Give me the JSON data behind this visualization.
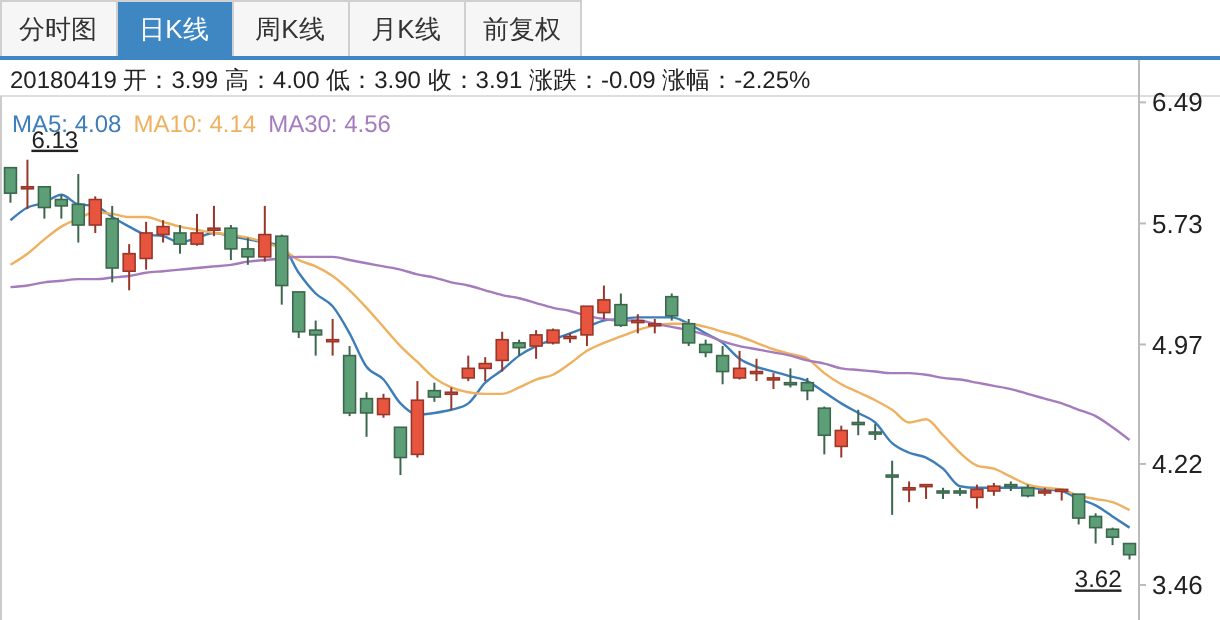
{
  "chart_data": {
    "type": "candlestick",
    "subtitle": "20180419 开：3.99 高：4.00 低：3.90 收：3.91 涨跌：-0.09 涨幅：-2.25%",
    "annotations": [
      "分时图",
      "日K线",
      "周K线",
      "月K线",
      "前复权",
      "6.13",
      "3.62"
    ],
    "categories": [
      null,
      null,
      null,
      null,
      null,
      null,
      null,
      null,
      null,
      null,
      null,
      null,
      null,
      null,
      null,
      null,
      null,
      null,
      null,
      null,
      null,
      null,
      null,
      null,
      null,
      null,
      null,
      null,
      null,
      null,
      null,
      null,
      null,
      null,
      null,
      null,
      null,
      null,
      null,
      null,
      null,
      null,
      null,
      null,
      null,
      null,
      null,
      null,
      null,
      null,
      null,
      null,
      null,
      null,
      null,
      null,
      null,
      null,
      null,
      null,
      null,
      null,
      null,
      null,
      null,
      null,
      null
    ],
    "ohlc": [
      [
        6.08,
        6.08,
        5.86,
        5.92
      ],
      [
        5.95,
        6.13,
        5.82,
        5.96
      ],
      [
        5.96,
        5.96,
        5.76,
        5.83
      ],
      [
        5.88,
        5.91,
        5.76,
        5.84
      ],
      [
        5.85,
        6.04,
        5.61,
        5.72
      ],
      [
        5.72,
        5.9,
        5.67,
        5.88
      ],
      [
        5.76,
        5.84,
        5.36,
        5.45
      ],
      [
        5.43,
        5.6,
        5.31,
        5.54
      ],
      [
        5.51,
        5.74,
        5.44,
        5.67
      ],
      [
        5.66,
        5.75,
        5.61,
        5.71
      ],
      [
        5.67,
        5.72,
        5.54,
        5.6
      ],
      [
        5.6,
        5.79,
        5.59,
        5.67
      ],
      [
        5.69,
        5.84,
        5.65,
        5.7
      ],
      [
        5.7,
        5.72,
        5.5,
        5.57
      ],
      [
        5.57,
        5.64,
        5.47,
        5.52
      ],
      [
        5.52,
        5.84,
        5.49,
        5.66
      ],
      [
        5.65,
        5.66,
        5.22,
        5.34
      ],
      [
        5.3,
        5.3,
        5.01,
        5.05
      ],
      [
        5.06,
        5.12,
        4.9,
        5.03
      ],
      [
        4.99,
        5.13,
        4.9,
        5.0
      ],
      [
        4.9,
        4.96,
        4.52,
        4.54
      ],
      [
        4.63,
        4.67,
        4.39,
        4.54
      ],
      [
        4.53,
        4.66,
        4.51,
        4.63
      ],
      [
        4.45,
        4.45,
        4.15,
        4.26
      ],
      [
        4.28,
        4.74,
        4.26,
        4.62
      ],
      [
        4.68,
        4.73,
        4.61,
        4.64
      ],
      [
        4.66,
        4.7,
        4.56,
        4.67
      ],
      [
        4.76,
        4.9,
        4.74,
        4.82
      ],
      [
        4.82,
        4.89,
        4.74,
        4.85
      ],
      [
        4.87,
        5.05,
        4.8,
        5.0
      ],
      [
        4.98,
        5.0,
        4.9,
        4.95
      ],
      [
        4.96,
        5.06,
        4.88,
        5.03
      ],
      [
        4.98,
        5.07,
        4.97,
        5.06
      ],
      [
        5.01,
        5.04,
        4.98,
        5.02
      ],
      [
        5.03,
        5.21,
        4.96,
        5.21
      ],
      [
        5.17,
        5.34,
        5.13,
        5.25
      ],
      [
        5.22,
        5.29,
        5.08,
        5.09
      ],
      [
        5.11,
        5.16,
        5.04,
        5.12
      ],
      [
        5.09,
        5.13,
        5.04,
        5.1
      ],
      [
        5.27,
        5.29,
        5.12,
        5.15
      ],
      [
        5.1,
        5.13,
        4.96,
        4.98
      ],
      [
        4.97,
        5.0,
        4.89,
        4.92
      ],
      [
        4.9,
        4.96,
        4.72,
        4.8
      ],
      [
        4.76,
        4.93,
        4.75,
        4.82
      ],
      [
        4.79,
        4.88,
        4.74,
        4.8
      ],
      [
        4.75,
        4.79,
        4.69,
        4.76
      ],
      [
        4.73,
        4.82,
        4.7,
        4.72
      ],
      [
        4.73,
        4.76,
        4.62,
        4.68
      ],
      [
        4.57,
        4.58,
        4.28,
        4.4
      ],
      [
        4.33,
        4.46,
        4.26,
        4.43
      ],
      [
        4.48,
        4.56,
        4.4,
        4.47
      ],
      [
        4.42,
        4.47,
        4.37,
        4.41
      ],
      [
        4.15,
        4.24,
        3.9,
        4.14
      ],
      [
        4.06,
        4.11,
        3.98,
        4.07
      ],
      [
        4.08,
        4.09,
        4.0,
        4.09
      ],
      [
        4.05,
        4.07,
        4.0,
        4.04
      ],
      [
        4.05,
        4.07,
        4.02,
        4.04
      ],
      [
        4.01,
        4.09,
        3.94,
        4.06
      ],
      [
        4.05,
        4.1,
        4.02,
        4.08
      ],
      [
        4.09,
        4.11,
        4.05,
        4.08
      ],
      [
        4.07,
        4.09,
        4.01,
        4.02
      ],
      [
        4.04,
        4.07,
        4.02,
        4.05
      ],
      [
        4.05,
        4.06,
        3.99,
        4.06
      ],
      [
        4.03,
        4.03,
        3.84,
        3.88
      ],
      [
        3.89,
        3.91,
        3.72,
        3.82
      ],
      [
        3.81,
        3.82,
        3.71,
        3.76
      ],
      [
        3.72,
        3.72,
        3.62,
        3.65
      ]
    ],
    "colors": [
      "#5c9e76",
      "#e8553f",
      "#5c9e76",
      "#5c9e76",
      "#5c9e76",
      "#e8553f",
      "#5c9e76",
      "#e8553f",
      "#e8553f",
      "#e8553f",
      "#5c9e76",
      "#e8553f",
      "#e8553f",
      "#5c9e76",
      "#5c9e76",
      "#e8553f",
      "#5c9e76",
      "#5c9e76",
      "#5c9e76",
      "#e8553f",
      "#5c9e76",
      "#5c9e76",
      "#e8553f",
      "#5c9e76",
      "#e8553f",
      "#5c9e76",
      "#e8553f",
      "#e8553f",
      "#e8553f",
      "#e8553f",
      "#5c9e76",
      "#e8553f",
      "#e8553f",
      "#e8553f",
      "#e8553f",
      "#e8553f",
      "#5c9e76",
      "#e8553f",
      "#e8553f",
      "#5c9e76",
      "#5c9e76",
      "#5c9e76",
      "#5c9e76",
      "#e8553f",
      "#e8553f",
      "#e8553f",
      "#5c9e76",
      "#5c9e76",
      "#5c9e76",
      "#e8553f",
      "#5c9e76",
      "#5c9e76",
      "#5c9e76",
      "#e8553f",
      "#e8553f",
      "#5c9e76",
      "#5c9e76",
      "#e8553f",
      "#e8553f",
      "#5c9e76",
      "#5c9e76",
      "#e8553f",
      "#e8553f",
      "#5c9e76",
      "#5c9e76",
      "#5c9e76",
      "#5c9e76"
    ],
    "series": [
      {
        "type": "line",
        "name": "MA5: 4.08",
        "color": "#3d7eb8",
        "values": [
          5.75,
          5.83,
          5.86,
          5.91,
          5.85,
          5.84,
          5.77,
          5.71,
          5.66,
          5.65,
          5.61,
          5.64,
          5.67,
          5.65,
          5.63,
          5.61,
          5.59,
          5.42,
          5.29,
          5.21,
          5.04,
          4.83,
          4.75,
          4.6,
          4.53,
          4.54,
          4.56,
          4.6,
          4.73,
          4.81,
          4.9,
          4.96,
          5.0,
          5.04,
          5.08,
          5.12,
          5.13,
          5.14,
          5.14,
          5.14,
          5.1,
          5.04,
          4.98,
          4.88,
          4.83,
          4.8,
          4.77,
          4.74,
          4.67,
          4.6,
          4.54,
          4.48,
          4.35,
          4.29,
          4.26,
          4.19,
          4.08,
          4.07,
          4.07,
          4.07,
          4.07,
          4.06,
          4.05,
          4.0,
          3.96,
          3.89,
          3.82
        ]
      },
      {
        "type": "line",
        "name": "MA10: 4.14",
        "color": "#efb060",
        "values": [
          5.47,
          5.54,
          5.63,
          5.71,
          5.76,
          5.8,
          5.79,
          5.77,
          5.77,
          5.74,
          5.71,
          5.69,
          5.67,
          5.66,
          5.64,
          5.61,
          5.57,
          5.5,
          5.46,
          5.4,
          5.31,
          5.2,
          5.08,
          4.96,
          4.86,
          4.76,
          4.7,
          4.67,
          4.66,
          4.66,
          4.7,
          4.75,
          4.78,
          4.85,
          4.93,
          4.98,
          5.02,
          5.06,
          5.09,
          5.1,
          5.1,
          5.08,
          5.05,
          5.02,
          4.98,
          4.94,
          4.91,
          4.88,
          4.79,
          4.72,
          4.67,
          4.62,
          4.56,
          4.48,
          4.5,
          4.4,
          4.29,
          4.21,
          4.19,
          4.14,
          4.09,
          4.07,
          4.06,
          4.02,
          4.0,
          3.98,
          3.93
        ]
      },
      {
        "type": "line",
        "name": "MA30: 4.56",
        "color": "#a57bbd",
        "values": [
          5.33,
          5.34,
          5.36,
          5.37,
          5.38,
          5.38,
          5.39,
          5.4,
          5.42,
          5.43,
          5.44,
          5.45,
          5.46,
          5.47,
          5.49,
          5.5,
          5.51,
          5.52,
          5.52,
          5.52,
          5.5,
          5.48,
          5.46,
          5.44,
          5.41,
          5.39,
          5.36,
          5.34,
          5.31,
          5.28,
          5.26,
          5.23,
          5.2,
          5.18,
          5.15,
          5.13,
          5.12,
          5.12,
          5.1,
          5.08,
          5.06,
          5.03,
          4.99,
          4.96,
          4.94,
          4.92,
          4.9,
          4.87,
          4.85,
          4.82,
          4.81,
          4.8,
          4.79,
          4.79,
          4.78,
          4.76,
          4.75,
          4.73,
          4.71,
          4.69,
          4.66,
          4.63,
          4.6,
          4.56,
          4.52,
          4.45,
          4.37
        ]
      }
    ],
    "ylim": [
      3.24,
      6.53
    ],
    "yticks": [
      3.46,
      4.22,
      4.97,
      5.73,
      6.49
    ],
    "legend": "top left"
  }
}
